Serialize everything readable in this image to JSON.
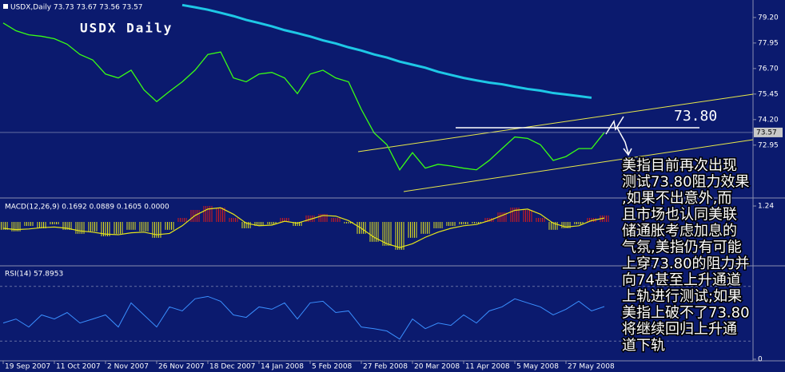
{
  "chart_data": [
    {
      "type": "price",
      "title": "USDX Daily",
      "subtitle": "USDX,Daily  73.73 73.67 73.56 73.57",
      "categories": [
        "19 Sep 2007",
        null,
        null,
        null,
        "11 Oct 2007",
        null,
        null,
        null,
        "2 Nov 2007",
        null,
        null,
        null,
        "26 Nov 2007",
        null,
        null,
        null,
        "18 Dec 2007",
        null,
        null,
        null,
        "14 Jan 2008",
        null,
        null,
        null,
        "5 Feb 2008",
        null,
        null,
        null,
        "27 Feb 2008",
        null,
        null,
        null,
        "20 Mar 2008",
        null,
        null,
        null,
        "11 Apr 2008",
        null,
        null,
        null,
        "5 May 2008",
        null,
        null,
        null,
        "27 May 2008",
        null,
        null,
        null
      ],
      "series": [
        {
          "color": "#39ff14",
          "values": [
            78.93,
            78.55,
            78.35,
            78.28,
            78.16,
            77.89,
            77.39,
            77.12,
            76.43,
            76.24,
            76.62,
            75.66,
            75.08,
            75.58,
            76.05,
            76.62,
            77.39,
            77.51,
            76.24,
            76.05,
            76.43,
            76.51,
            76.24,
            75.47,
            76.43,
            76.62,
            76.24,
            76.05,
            74.7,
            73.55,
            72.97,
            71.74,
            72.58,
            71.82,
            72.01,
            71.93,
            71.82,
            71.74,
            72.2,
            72.78,
            73.35,
            73.28,
            72.97,
            72.2,
            72.39,
            72.78,
            72.78,
            73.57
          ]
        },
        {
          "color": "#1ec8e6",
          "values": [
            null,
            null,
            null,
            null,
            null,
            null,
            null,
            null,
            null,
            null,
            null,
            null,
            null,
            null,
            79.81,
            79.7,
            79.58,
            79.43,
            79.27,
            79.08,
            78.93,
            78.77,
            78.58,
            78.43,
            78.27,
            78.08,
            77.93,
            77.74,
            77.58,
            77.39,
            77.24,
            77.04,
            76.89,
            76.74,
            76.54,
            76.39,
            76.24,
            76.12,
            76.01,
            75.93,
            75.81,
            75.7,
            75.62,
            75.5,
            75.43,
            75.35,
            75.27,
            null
          ]
        }
      ],
      "ylim": [
        70.4,
        79.9
      ],
      "yticks": [
        {
          "value": 79.2,
          "label": "79.20"
        },
        77.95,
        {
          "value": 76.7,
          "label": "76.70"
        },
        75.45,
        {
          "value": 74.2,
          "label": "74.20"
        },
        72.95
      ],
      "last_price": 73.57,
      "annotation": {
        "value": 73.8,
        "label": "73.80"
      },
      "notes": [
        "美指目前再次出现",
        "测试73.80阻力效果",
        ",如果不出意外,而",
        "且市场也认同美联",
        "储通胀考虑加息的",
        "气氛,美指仍有可能",
        "上穿73.80的阻力并",
        "向74甚至上升通道",
        "上轨进行测试;如果",
        "美指上破不了73.80",
        "将继续回归上升通",
        "道下轨"
      ]
    },
    {
      "type": "macd",
      "title": "MACD(12,26,9) 0.1692 0.0889 0.1605 0.0000",
      "series": [
        {
          "type": "bar",
          "color": "#e6e61a",
          "up_color": "#d81a1a",
          "values": [
            -0.62,
            -0.74,
            -0.31,
            -0.5,
            -0.19,
            -0.62,
            -0.93,
            -0.74,
            -1.12,
            -0.93,
            -0.62,
            -0.74,
            -1.24,
            -0.62,
            0.31,
            0.93,
            1.24,
            1.12,
            0.31,
            -0.5,
            -0.31,
            -0.19,
            0.31,
            -0.31,
            0.5,
            0.62,
            0.31,
            -0.12,
            -0.93,
            -1.55,
            -1.86,
            -2.17,
            -1.24,
            -0.93,
            -0.5,
            -0.31,
            -0.19,
            -0.12,
            0.31,
            0.74,
            1.12,
            0.93,
            0.31,
            -0.62,
            -0.5,
            -0.19,
            0.31,
            0.5
          ]
        },
        {
          "type": "line",
          "color": "#e6e61a",
          "values": [
            -0.5,
            -0.6,
            -0.55,
            -0.45,
            -0.4,
            -0.5,
            -0.7,
            -0.8,
            -0.95,
            -1.0,
            -0.85,
            -0.8,
            -1.0,
            -0.9,
            -0.3,
            0.5,
            1.0,
            1.1,
            0.6,
            -0.1,
            -0.3,
            -0.25,
            0.05,
            -0.1,
            0.2,
            0.5,
            0.45,
            0.1,
            -0.5,
            -1.2,
            -1.7,
            -2.0,
            -1.7,
            -1.2,
            -0.8,
            -0.5,
            -0.3,
            -0.2,
            0.1,
            0.5,
            0.9,
            1.0,
            0.6,
            -0.1,
            -0.4,
            -0.3,
            0.1,
            0.3
          ]
        }
      ],
      "ylim": [
        -3.3,
        1.74
      ],
      "yticks": [
        1.24
      ]
    },
    {
      "type": "rsi",
      "title": "RSI(14) 57.8953",
      "series": [
        {
          "type": "line",
          "color": "#3a8fff",
          "values": [
            39.8,
            44.2,
            35.4,
            48.7,
            44.2,
            51.3,
            39.8,
            44.2,
            48.7,
            35.4,
            61.9,
            48.7,
            35.4,
            57.5,
            53.1,
            66.4,
            69.0,
            63.7,
            48.7,
            46.0,
            57.5,
            54.9,
            61.9,
            44.2,
            61.9,
            63.7,
            51.3,
            53.1,
            35.4,
            33.6,
            31.0,
            22.1,
            44.2,
            33.6,
            39.8,
            37.2,
            48.7,
            39.8,
            53.1,
            57.5,
            66.4,
            61.9,
            57.5,
            48.7,
            54.9,
            63.7,
            53.1,
            57.9
          ]
        }
      ],
      "ylim": [
        0,
        100
      ],
      "yticks": [
        0
      ],
      "levels": [
        20,
        80
      ]
    }
  ]
}
